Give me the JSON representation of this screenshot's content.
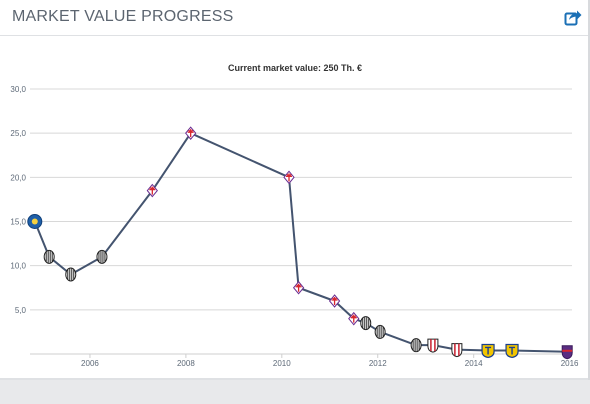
{
  "header": {
    "title": "MARKET VALUE PROGRESS",
    "share_icon": "share-icon"
  },
  "chart_data": {
    "type": "line",
    "title": "Current market value: 250 Th. €",
    "xlabel": "",
    "ylabel": "",
    "ylim": [
      0,
      30
    ],
    "xlim": [
      2004.75,
      2016.05
    ],
    "grid": true,
    "legend": "none",
    "x_ticks": [
      "2006",
      "2008",
      "2010",
      "2012",
      "2014",
      "2016"
    ],
    "y_ticks": [
      "5,0",
      "10,0",
      "15,0",
      "20,0",
      "25,0",
      "30,0"
    ],
    "colors": {
      "line": "#44546f",
      "grid": "#d8d8d8",
      "axis_text": "#5e6a78"
    },
    "series": [
      {
        "points": [
          {
            "x": 2004.85,
            "y": 15.0,
            "club": "blue-crest"
          },
          {
            "x": 2005.15,
            "y": 11.0,
            "club": "juventus"
          },
          {
            "x": 2005.6,
            "y": 9.0,
            "club": "juventus"
          },
          {
            "x": 2006.25,
            "y": 11.0,
            "club": "juventus"
          },
          {
            "x": 2007.3,
            "y": 18.5,
            "club": "fiorentina"
          },
          {
            "x": 2008.1,
            "y": 25.0,
            "club": "fiorentina"
          },
          {
            "x": 2010.15,
            "y": 20.0,
            "club": "fiorentina"
          },
          {
            "x": 2010.35,
            "y": 7.5,
            "club": "fiorentina"
          },
          {
            "x": 2011.1,
            "y": 6.0,
            "club": "fiorentina"
          },
          {
            "x": 2011.5,
            "y": 4.0,
            "club": "fiorentina"
          },
          {
            "x": 2011.75,
            "y": 3.5,
            "club": "juventus"
          },
          {
            "x": 2012.05,
            "y": 2.5,
            "club": "juventus"
          },
          {
            "x": 2012.8,
            "y": 1.0,
            "club": "juventus"
          },
          {
            "x": 2013.15,
            "y": 1.0,
            "club": "red-white"
          },
          {
            "x": 2013.65,
            "y": 0.5,
            "club": "red-white"
          },
          {
            "x": 2014.3,
            "y": 0.4,
            "club": "yellow-blue"
          },
          {
            "x": 2014.8,
            "y": 0.4,
            "club": "yellow-blue"
          },
          {
            "x": 2015.95,
            "y": 0.25,
            "club": "purple-red"
          }
        ]
      }
    ]
  }
}
